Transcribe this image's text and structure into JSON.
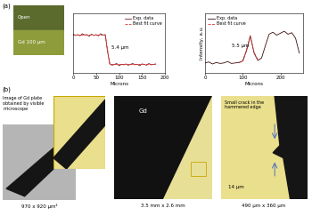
{
  "panels": {
    "a": "(a)",
    "b": "(b)"
  },
  "gd_image": {
    "labels": [
      "Open",
      "Gd 100 μm"
    ]
  },
  "chart_data": [
    {
      "type": "line",
      "xlabel": "Microns",
      "annotation": "5.4 μm",
      "x": [
        0,
        5,
        10,
        15,
        20,
        25,
        30,
        35,
        40,
        45,
        50,
        55,
        60,
        65,
        70,
        75,
        80,
        85,
        90,
        95,
        100,
        105,
        110,
        115,
        120,
        125,
        130,
        135,
        140,
        145,
        150,
        155,
        160,
        165,
        170,
        175,
        180
      ],
      "series": [
        {
          "name": "Exp. data",
          "color": "#7b1f1f",
          "line_style": "solid",
          "values": [
            0.91,
            0.88,
            0.9,
            0.87,
            0.92,
            0.89,
            0.9,
            0.86,
            0.91,
            0.88,
            0.9,
            0.87,
            0.92,
            0.89,
            0.9,
            0.5,
            0.21,
            0.18,
            0.2,
            0.22,
            0.17,
            0.2,
            0.19,
            0.21,
            0.18,
            0.2,
            0.22,
            0.19,
            0.2,
            0.17,
            0.21,
            0.2,
            0.18,
            0.22,
            0.19,
            0.2,
            0.21
          ]
        },
        {
          "name": "Best fit curve",
          "color": "#e03030",
          "line_style": "dashed",
          "values": [
            0.89,
            0.89,
            0.89,
            0.89,
            0.89,
            0.89,
            0.89,
            0.89,
            0.89,
            0.89,
            0.89,
            0.89,
            0.89,
            0.89,
            0.89,
            0.55,
            0.2,
            0.2,
            0.2,
            0.2,
            0.2,
            0.2,
            0.2,
            0.2,
            0.2,
            0.2,
            0.2,
            0.2,
            0.2,
            0.2,
            0.2,
            0.2,
            0.2,
            0.2,
            0.2,
            0.2,
            0.2
          ]
        }
      ],
      "xlim": [
        0,
        200
      ],
      "xticks": [
        0,
        50,
        100,
        150,
        200
      ],
      "ylim": [
        0,
        1.4
      ],
      "yticks": [],
      "tick_labels": "x",
      "legend": "upper right"
    },
    {
      "type": "line",
      "xlabel": "Microns",
      "ylabel": "Intensity, a.u.",
      "annotation": "5.5 μm",
      "x": [
        0,
        10,
        20,
        30,
        40,
        50,
        60,
        70,
        80,
        90,
        100,
        110,
        120,
        130,
        140,
        150,
        160,
        170,
        180,
        190,
        200,
        210,
        220,
        230,
        240,
        250
      ],
      "series": [
        {
          "name": "Exp. data",
          "color": "#3a0a0a",
          "line_style": "solid",
          "values": [
            0.2,
            0.22,
            0.18,
            0.21,
            0.19,
            0.2,
            0.23,
            0.19,
            0.2,
            0.21,
            0.24,
            0.45,
            0.75,
            0.4,
            0.25,
            0.3,
            0.55,
            0.78,
            0.82,
            0.76,
            0.8,
            0.84,
            0.78,
            0.81,
            0.7,
            0.4
          ]
        },
        {
          "name": "Best fit curve",
          "color": "#e03030",
          "line_style": "dashed",
          "values": [
            null,
            null,
            null,
            null,
            null,
            null,
            null,
            null,
            null,
            0.21,
            0.23,
            0.46,
            0.73,
            0.42,
            0.26,
            null,
            null,
            null,
            null,
            null,
            null,
            null,
            null,
            null,
            null,
            null
          ]
        }
      ],
      "xlim": [
        0,
        260
      ],
      "xticks": [
        0,
        100,
        200
      ],
      "ylim": [
        0,
        1.2
      ],
      "yticks": [],
      "tick_labels": "x",
      "legend": "upper left"
    }
  ],
  "images": {
    "microscope_caption": "Image of Gd plate obtained by visible microscope",
    "microscope_size": "970 x 920 μm²",
    "plate_label": "Gd",
    "plate_size": "3.5 mm x 2.6 mm",
    "crack_label": "Small crack in the hammered edge",
    "crack_width": "14 μm",
    "zoom_size": "490 μm x 360 μm"
  }
}
